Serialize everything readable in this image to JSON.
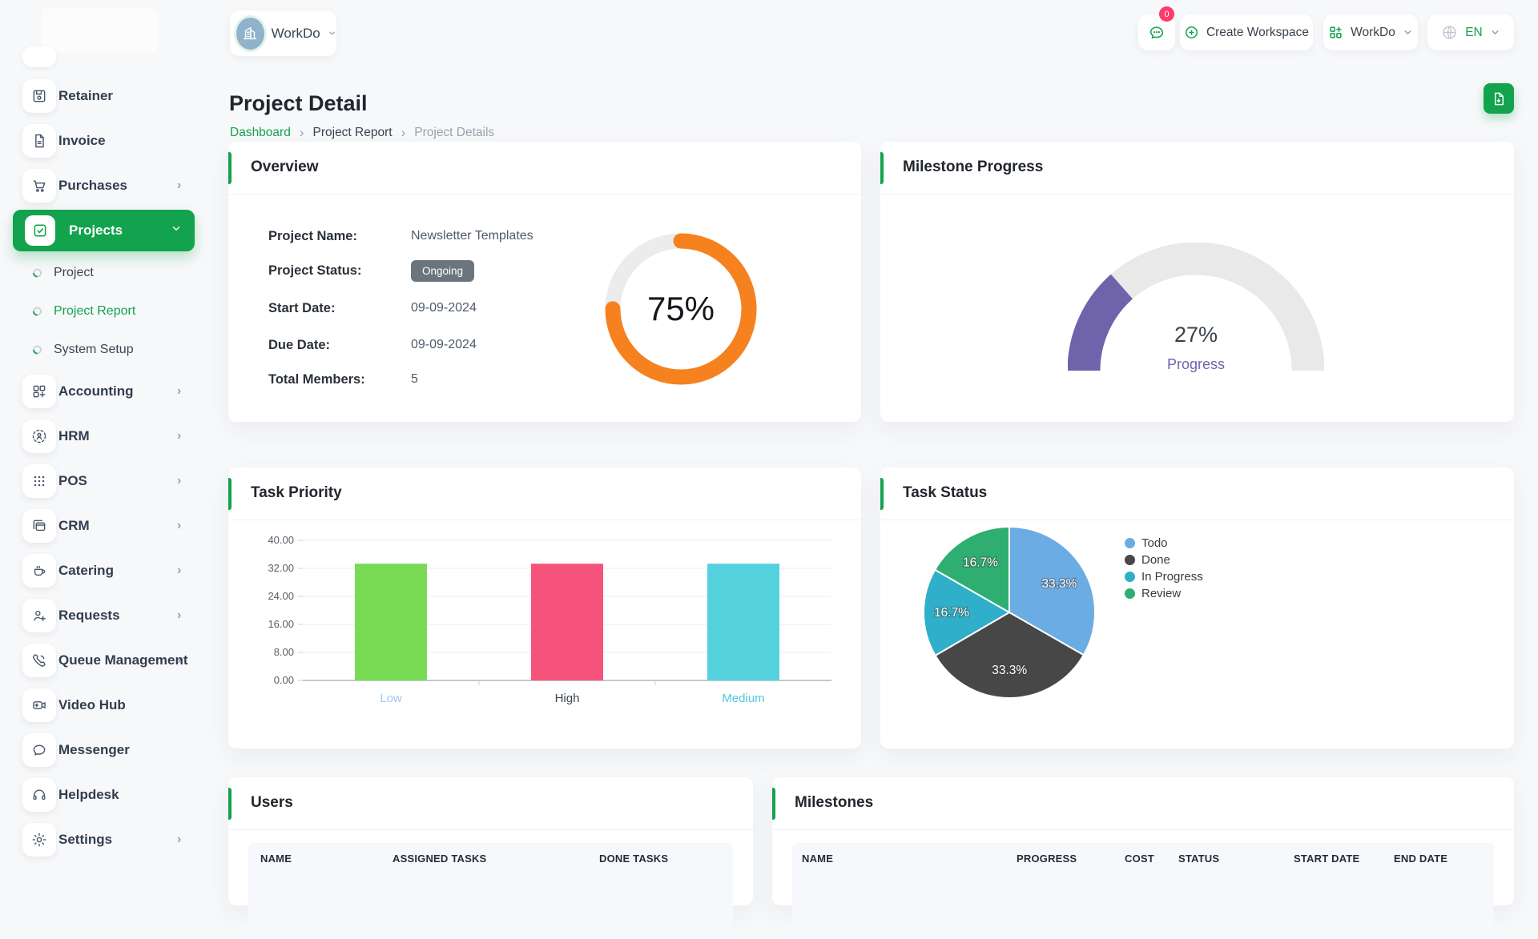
{
  "topbar": {
    "workspace_switcher": {
      "label": "WorkDo"
    },
    "messages_badge": "0",
    "create_workspace": {
      "label": "Create Workspace"
    },
    "workspace_menu": {
      "label": "WorkDo"
    },
    "language": {
      "label": "EN"
    }
  },
  "sidebar": {
    "items": [
      {
        "label": "Retainer"
      },
      {
        "label": "Invoice"
      },
      {
        "label": "Purchases"
      },
      {
        "label": "Projects"
      },
      {
        "label": "Project"
      },
      {
        "label": "Project Report"
      },
      {
        "label": "System Setup"
      },
      {
        "label": "Accounting"
      },
      {
        "label": "HRM"
      },
      {
        "label": "POS"
      },
      {
        "label": "CRM"
      },
      {
        "label": "Catering"
      },
      {
        "label": "Requests"
      },
      {
        "label": "Queue Management"
      },
      {
        "label": "Video Hub"
      },
      {
        "label": "Messenger"
      },
      {
        "label": "Helpdesk"
      },
      {
        "label": "Settings"
      }
    ]
  },
  "page": {
    "title": "Project Detail",
    "breadcrumb": {
      "home": "Dashboard",
      "section": "Project Report",
      "current": "Project Details"
    }
  },
  "overview": {
    "title": "Overview",
    "fields": [
      {
        "label": "Project Name:",
        "value": "Newsletter Templates"
      },
      {
        "label": "Project Status:",
        "value": "Ongoing"
      },
      {
        "label": "Start Date:",
        "value": "09-09-2024"
      },
      {
        "label": "Due Date:",
        "value": "09-09-2024"
      },
      {
        "label": "Total Members:",
        "value": "5"
      }
    ]
  },
  "milestone_progress": {
    "title": "Milestone Progress"
  },
  "task_priority": {
    "title": "Task Priority"
  },
  "task_status": {
    "title": "Task Status"
  },
  "users": {
    "title": "Users",
    "columns": [
      "NAME",
      "ASSIGNED TASKS",
      "DONE TASKS"
    ]
  },
  "milestones": {
    "title": "Milestones",
    "columns": [
      "NAME",
      "PROGRESS",
      "COST",
      "STATUS",
      "START DATE",
      "END DATE"
    ]
  },
  "colors": {
    "accent_green": "#13a24d",
    "donut_orange": "#f5821f",
    "gauge_purple": "#6f63ac",
    "status_badge_gray": "#6c757d",
    "notification_red": "#fd3c6b"
  },
  "chart_data": [
    {
      "id": "overview-progress",
      "type": "radial-progress",
      "title": "Overview project completion",
      "value": 75,
      "label": "75%",
      "color": "#f5821f",
      "track": "#ececec"
    },
    {
      "id": "milestone-progress",
      "type": "gauge",
      "title": "Milestone Progress",
      "value": 27,
      "label": "27%",
      "sublabel": "Progress",
      "range": [
        0,
        100
      ],
      "color": "#6f63ac",
      "track": "#e9e9e9"
    },
    {
      "id": "task-priority",
      "type": "bar",
      "title": "Task Priority",
      "categories": [
        "Low",
        "High",
        "Medium"
      ],
      "values": [
        33.33,
        33.33,
        33.33
      ],
      "colors": [
        "#79db54",
        "#f5537b",
        "#55d1de"
      ],
      "category_label_colors": [
        "#a3c8f1",
        "#3c4650",
        "#4ec9df"
      ],
      "xlabel": "",
      "ylabel": "",
      "ylim": [
        0,
        40
      ],
      "yticks": [
        0,
        8,
        16,
        24,
        32,
        40
      ],
      "ytick_decimals": 2,
      "grid": true
    },
    {
      "id": "task-status",
      "type": "pie",
      "title": "Task Status",
      "labels": [
        "Todo",
        "Done",
        "In Progress",
        "Review"
      ],
      "values": [
        33.3,
        33.3,
        16.7,
        16.7
      ],
      "data_labels": [
        "33.3%",
        "33.3%",
        "16.7%",
        "16.7%"
      ],
      "colors": [
        "#6cace4",
        "#474747",
        "#2fafc9",
        "#2eae71"
      ],
      "legend_position": "right"
    }
  ]
}
